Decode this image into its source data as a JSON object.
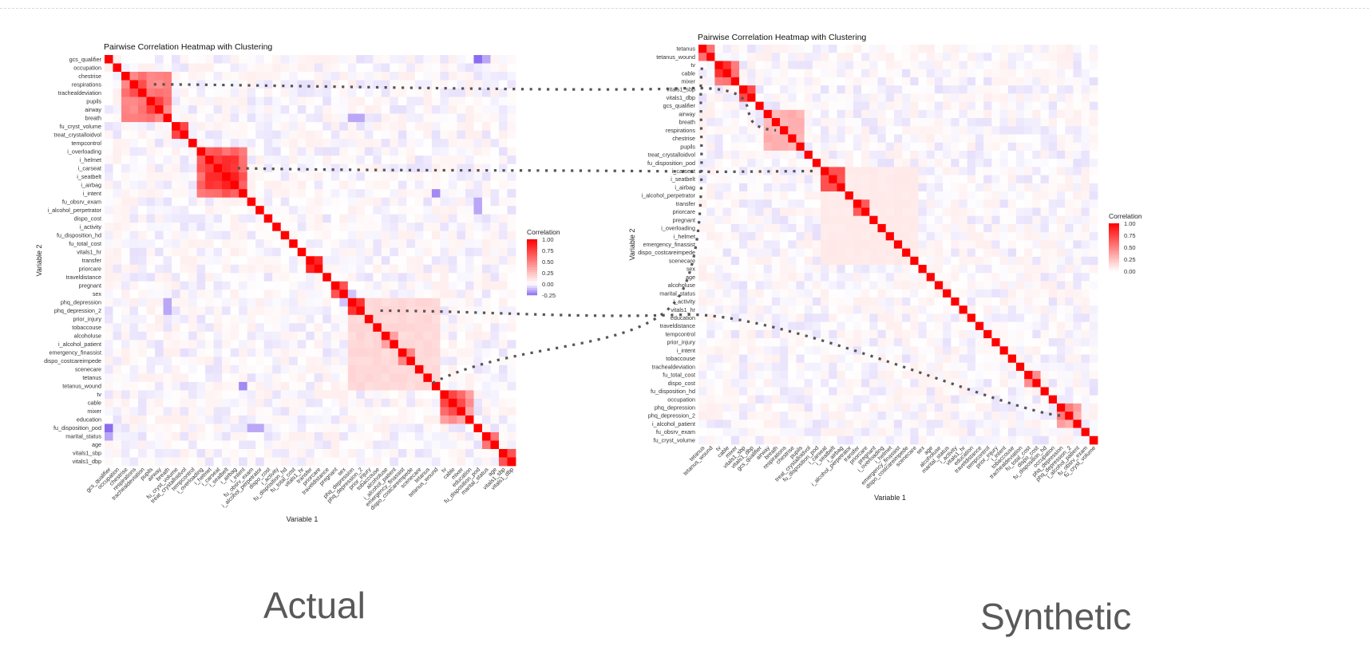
{
  "panels": [
    {
      "id": "actual",
      "title": "Pairwise Correlation Heatmap with Clustering",
      "xlabel": "Variable 1",
      "ylabel": "Variable 2",
      "caption": "Actual",
      "legend": {
        "title": "Correlation",
        "ticks": [
          "1.00",
          "0.75",
          "0.50",
          "0.25",
          "0.00",
          "-0.25"
        ]
      }
    },
    {
      "id": "synthetic",
      "title": "Pairwise Correlation Heatmap with Clustering",
      "xlabel": "Variable 1",
      "ylabel": "Variable 2",
      "caption": "Synthetic",
      "legend": {
        "title": "Correlation",
        "ticks": [
          "1.00",
          "0.75",
          "0.50",
          "0.25",
          "0.00"
        ]
      }
    }
  ],
  "colors": {
    "high": "#ff0000",
    "mid": "#ffffff",
    "low": "#8c6cf0",
    "connector": "#555555"
  },
  "chart_data": [
    {
      "type": "heatmap",
      "title": "Pairwise Correlation Heatmap with Clustering",
      "xlabel": "Variable 1",
      "ylabel": "Variable 2",
      "variables": [
        "gcs_qualifier",
        "occupation",
        "chestrise",
        "respirations",
        "trachealdeviation",
        "pupils",
        "airway",
        "breath",
        "fu_cryst_volume",
        "treat_crystalloidvol",
        "tempcontrol",
        "i_overloading",
        "i_helmet",
        "i_carseat",
        "i_seatbelt",
        "i_airbag",
        "i_intent",
        "fu_obsrv_exam",
        "i_alcohol_perpetrator",
        "dispo_cost",
        "i_activity",
        "fu_disposition_hd",
        "fu_total_cost",
        "vitals1_hr",
        "transfer",
        "priorcare",
        "traveldistance",
        "pregnant",
        "sex",
        "phq_depression",
        "phq_depression_2",
        "prior_injury",
        "tobaccouse",
        "alcoholuse",
        "i_alcohol_patient",
        "emergency_finassist",
        "dispo_costcareimpede",
        "scenecare",
        "tetanus",
        "tetanus_wound",
        "tv",
        "cable",
        "mixer",
        "education",
        "fu_disposition_pod",
        "marital_status",
        "age",
        "vitals1_sbp",
        "vitals1_dbp"
      ],
      "blocks": [
        {
          "from": 2,
          "to": 7,
          "value": 0.5
        },
        {
          "from": 3,
          "to": 4,
          "value": 0.7
        },
        {
          "from": 5,
          "to": 6,
          "value": 0.7
        },
        {
          "from": 8,
          "to": 9,
          "value": 0.85
        },
        {
          "from": 11,
          "to": 16,
          "value": 0.6
        },
        {
          "from": 12,
          "to": 15,
          "value": 0.8
        },
        {
          "from": 24,
          "to": 25,
          "value": 0.75
        },
        {
          "from": 27,
          "to": 28,
          "value": 0.6
        },
        {
          "from": 29,
          "to": 39,
          "value": 0.15
        },
        {
          "from": 29,
          "to": 30,
          "value": 0.8
        },
        {
          "from": 33,
          "to": 34,
          "value": 0.35
        },
        {
          "from": 35,
          "to": 36,
          "value": 0.45
        },
        {
          "from": 40,
          "to": 43,
          "value": 0.4
        },
        {
          "from": 40,
          "to": 42,
          "value": 0.65
        },
        {
          "from": 45,
          "to": 46,
          "value": 0.55
        },
        {
          "from": 47,
          "to": 48,
          "value": 0.75
        }
      ],
      "negative_cells": [
        [
          0,
          44,
          -0.25
        ],
        [
          0,
          45,
          -0.15
        ],
        [
          16,
          39,
          -0.2
        ],
        [
          29,
          7,
          -0.15
        ],
        [
          30,
          7,
          -0.15
        ],
        [
          44,
          17,
          -0.15
        ],
        [
          44,
          18,
          -0.15
        ],
        [
          7,
          29,
          -0.15
        ],
        [
          28,
          29,
          -0.1
        ]
      ],
      "color_scale": {
        "min": -0.25,
        "max": 1.0
      },
      "legend": {
        "title": "Correlation",
        "ticks": [
          1.0,
          0.75,
          0.5,
          0.25,
          0.0,
          -0.25
        ]
      }
    },
    {
      "type": "heatmap",
      "title": "Pairwise Correlation Heatmap with Clustering",
      "xlabel": "Variable 1",
      "ylabel": "Variable 2",
      "variables": [
        "tetanus",
        "tetanus_wound",
        "tv",
        "cable",
        "mixer",
        "vitals1_sbp",
        "vitals1_dbp",
        "gcs_qualifier",
        "airway",
        "breath",
        "respirations",
        "chestrise",
        "pupils",
        "treat_crystalloidvol",
        "fu_disposition_pod",
        "i_carseat",
        "i_seatbelt",
        "i_airbag",
        "i_alcohol_perpetrator",
        "transfer",
        "priorcare",
        "pregnant",
        "i_overloading",
        "i_helmet",
        "emergency_finassist",
        "dispo_costcareimpede",
        "scenecare",
        "sex",
        "age",
        "alcoholuse",
        "marital_status",
        "i_activity",
        "vitals1_hr",
        "education",
        "traveldistance",
        "tempcontrol",
        "prior_injury",
        "i_intent",
        "tobaccouse",
        "trachealdeviation",
        "fu_total_cost",
        "dispo_cost",
        "fu_disposition_hd",
        "occupation",
        "phq_depression",
        "phq_depression_2",
        "i_alcohol_patient",
        "fu_obsrv_exam",
        "fu_cryst_volume"
      ],
      "blocks": [
        {
          "from": 0,
          "to": 1,
          "value": 0.5
        },
        {
          "from": 2,
          "to": 4,
          "value": 0.55
        },
        {
          "from": 2,
          "to": 3,
          "value": 0.75
        },
        {
          "from": 5,
          "to": 6,
          "value": 0.7
        },
        {
          "from": 8,
          "to": 12,
          "value": 0.3
        },
        {
          "from": 15,
          "to": 17,
          "value": 0.6
        },
        {
          "from": 19,
          "to": 20,
          "value": 0.7
        },
        {
          "from": 15,
          "to": 26,
          "value": 0.08
        },
        {
          "from": 40,
          "to": 41,
          "value": 0.45
        },
        {
          "from": 44,
          "to": 46,
          "value": 0.35
        },
        {
          "from": 44,
          "to": 45,
          "value": 0.6
        }
      ],
      "negative_cells": [],
      "color_scale": {
        "min": 0.0,
        "max": 1.0
      },
      "legend": {
        "title": "Correlation",
        "ticks": [
          1.0,
          0.75,
          0.5,
          0.25,
          0.0
        ]
      }
    }
  ],
  "connectors": [
    {
      "from_panel": 0,
      "from_var": "respirations",
      "to_panel": 1,
      "to_var": "respirations"
    },
    {
      "from_panel": 0,
      "from_var": "i_carseat",
      "to_panel": 1,
      "to_var": "i_carseat"
    },
    {
      "from_panel": 0,
      "from_var": "phq_depression_2",
      "to_panel": 1,
      "to_var": "phq_depression_2"
    },
    {
      "from_panel": 0,
      "from_var": "tetanus_wound",
      "to_panel": 1,
      "to_var": "tetanus_wound"
    }
  ]
}
